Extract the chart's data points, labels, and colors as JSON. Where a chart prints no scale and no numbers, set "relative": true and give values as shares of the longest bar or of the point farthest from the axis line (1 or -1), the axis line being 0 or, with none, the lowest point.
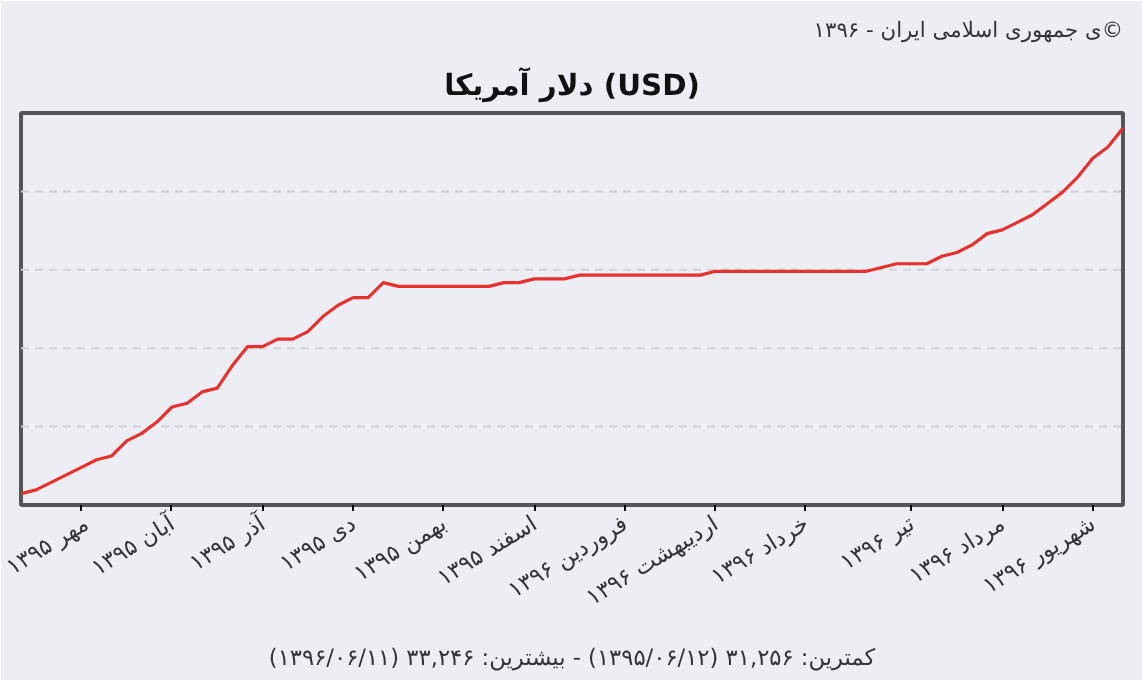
{
  "chart_data": {
    "type": "line",
    "title": "دلار آمریکا (USD)",
    "annotations": [
      "ی جمهوری اسلامی ایران - ۱۳۹۶©",
      "کمترین: ۳۱,۲۵۶ (۱۳۹۵/۰۶/۱۲) - بیشترین: ۳۳,۲۴۶ (۱۳۹۶/۰۶/۱۱)"
    ],
    "relative": true,
    "grid": "y",
    "marker": "none",
    "line_style": "solid",
    "categories": [
      null,
      null,
      null,
      null,
      "مهر ۱۳۹۵",
      null,
      null,
      null,
      null,
      null,
      "آبان ۱۳۹۵",
      null,
      null,
      null,
      null,
      null,
      "آذر ۱۳۹۵",
      null,
      null,
      null,
      null,
      null,
      "دی ۱۳۹۵",
      null,
      null,
      null,
      null,
      null,
      "بهمن ۱۳۹۵",
      null,
      null,
      null,
      null,
      null,
      "اسفند ۱۳۹۵",
      null,
      null,
      null,
      null,
      null,
      "فروردین ۱۳۹۶",
      null,
      null,
      null,
      null,
      null,
      "اردیبهشت ۱۳۹۶",
      null,
      null,
      null,
      null,
      null,
      "خرداد ۱۳۹۶",
      null,
      null,
      null,
      null,
      null,
      null,
      "تیر ۱۳۹۶",
      null,
      null,
      null,
      null,
      null,
      "مرداد ۱۳۹۶",
      null,
      null,
      null,
      null,
      null,
      "شهریور ۱۳۹۶",
      null,
      null
    ],
    "series": [
      {
        "color": "#e8312f",
        "values": [
          0.03,
          0.04,
          0.06,
          0.08,
          0.1,
          0.12,
          0.13,
          0.17,
          0.19,
          0.22,
          0.26,
          0.27,
          0.3,
          0.31,
          0.37,
          0.42,
          0.42,
          0.44,
          0.44,
          0.46,
          0.5,
          0.53,
          0.55,
          0.55,
          0.59,
          0.58,
          0.58,
          0.58,
          0.58,
          0.58,
          0.58,
          0.58,
          0.59,
          0.59,
          0.6,
          0.6,
          0.6,
          0.61,
          0.61,
          0.61,
          0.61,
          0.61,
          0.61,
          0.61,
          0.61,
          0.61,
          0.62,
          0.62,
          0.62,
          0.62,
          0.62,
          0.62,
          0.62,
          0.62,
          0.62,
          0.62,
          0.62,
          0.63,
          0.64,
          0.64,
          0.64,
          0.66,
          0.67,
          0.69,
          0.72,
          0.73,
          0.75,
          0.77,
          0.8,
          0.83,
          0.87,
          0.92,
          0.95,
          1.0
        ]
      }
    ]
  }
}
